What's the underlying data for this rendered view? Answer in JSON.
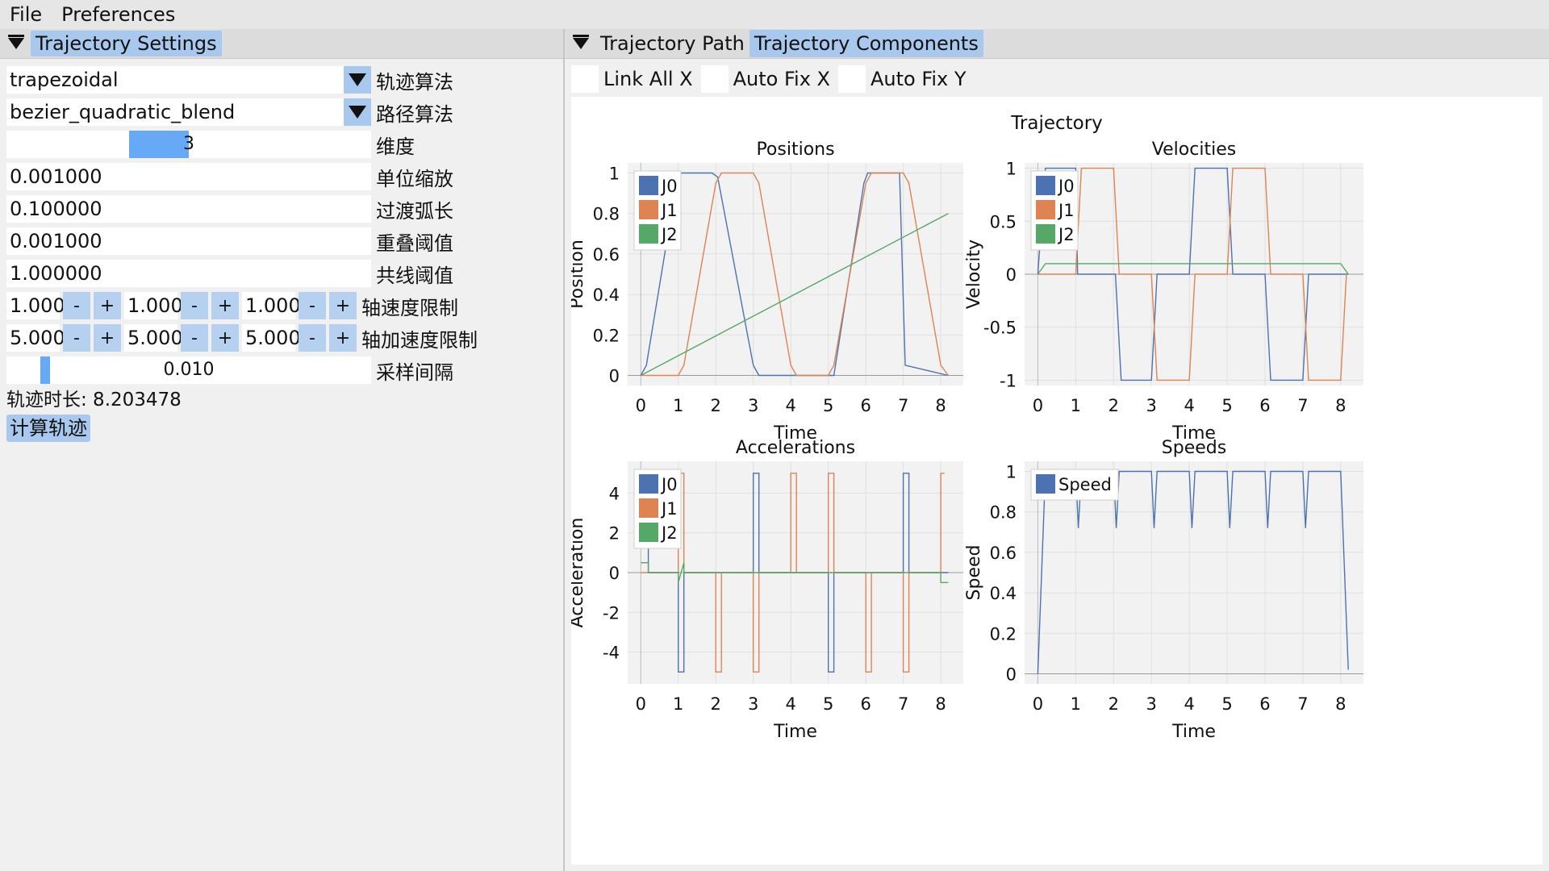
{
  "menu": {
    "file": "File",
    "preferences": "Preferences"
  },
  "left_panel": {
    "header": "Trajectory Settings",
    "trajectory_algorithm": {
      "value": "trapezoidal",
      "label": "轨迹算法"
    },
    "path_algorithm": {
      "value": "bezier_quadratic_blend",
      "label": "路径算法"
    },
    "dimension": {
      "value": "3",
      "label": "维度",
      "fill_fraction": 0.16
    },
    "unit_scale": {
      "value": "0.001000",
      "label": "单位缩放"
    },
    "blend_arc_length": {
      "value": "0.100000",
      "label": "过渡弧长"
    },
    "overlap_threshold": {
      "value": "0.001000",
      "label": "重叠阈值"
    },
    "collinear_threshold": {
      "value": "1.000000",
      "label": "共线阈值"
    },
    "axis_velocity_limit": {
      "values": [
        "1.000",
        "1.000",
        "1.000"
      ],
      "label": "轴速度限制"
    },
    "axis_acceleration_limit": {
      "values": [
        "5.000",
        "5.000",
        "5.000"
      ],
      "label": "轴加速度限制"
    },
    "sample_interval": {
      "value": "0.010",
      "label": "采样间隔",
      "fill_fraction": 0.01
    },
    "duration_text": "轨迹时长: 8.203478",
    "compute_button": "计算轨迹",
    "minus": "-",
    "plus": "+"
  },
  "right_panel": {
    "tabs": [
      "Trajectory Path",
      "Trajectory Components"
    ],
    "active_tab": "Trajectory Components",
    "checkboxes": [
      "Link All X",
      "Auto Fix X",
      "Auto Fix Y"
    ],
    "figure_title": "Trajectory"
  },
  "colors": {
    "J0": "#4c72b0",
    "J1": "#dd8452",
    "J2": "#55a868",
    "accent": "#a8c8ee"
  },
  "chart_data": [
    {
      "type": "line",
      "title": "Positions",
      "xlabel": "Time",
      "ylabel": "Position",
      "xlim": [
        -0.35,
        8.6
      ],
      "ylim": [
        -0.05,
        1.05
      ],
      "xticks": [
        0,
        1,
        2,
        3,
        4,
        5,
        6,
        7,
        8
      ],
      "yticks": [
        0,
        0.2,
        0.4,
        0.6,
        0.8,
        1
      ],
      "ytick_labels": [
        "0",
        "0.2",
        "0.4",
        "0.6",
        "0.8",
        "1"
      ],
      "legend": "top-left",
      "series": [
        {
          "name": "J0",
          "x": [
            0,
            0.15,
            0.95,
            1.05,
            1.9,
            2.05,
            3.0,
            3.15,
            4.0,
            5.15,
            5.95,
            6.05,
            6.9,
            7.05,
            8.2
          ],
          "y": [
            0,
            0.05,
            0.95,
            1,
            1,
            0.98,
            0.05,
            0,
            0,
            0,
            0.95,
            1,
            1,
            0.05,
            0
          ]
        },
        {
          "name": "J1",
          "x": [
            0,
            1.0,
            1.15,
            2.0,
            2.15,
            3.0,
            3.15,
            4.0,
            4.15,
            5.0,
            5.15,
            6.0,
            6.15,
            7.0,
            7.15,
            8.0,
            8.2
          ],
          "y": [
            0,
            0,
            0.05,
            0.95,
            1,
            1,
            0.95,
            0.05,
            0,
            0,
            0.05,
            0.95,
            1,
            1,
            0.95,
            0.05,
            0
          ]
        },
        {
          "name": "J2",
          "x": [
            0,
            8.2
          ],
          "y": [
            0,
            0.8
          ]
        }
      ]
    },
    {
      "type": "line",
      "title": "Velocities",
      "xlabel": "Time",
      "ylabel": "Velocity",
      "xlim": [
        -0.35,
        8.6
      ],
      "ylim": [
        -1.05,
        1.05
      ],
      "xticks": [
        0,
        1,
        2,
        3,
        4,
        5,
        6,
        7,
        8
      ],
      "yticks": [
        -1,
        -0.5,
        0,
        0.5,
        1
      ],
      "ytick_labels": [
        "-1",
        "-0.5",
        "0",
        "0.5",
        "1"
      ],
      "legend": "top-left",
      "series": [
        {
          "name": "J0",
          "x": [
            0,
            0.2,
            1.0,
            1.05,
            2.05,
            2.2,
            3.0,
            3.15,
            4.0,
            4.15,
            5.0,
            5.15,
            6.0,
            6.15,
            7.0,
            7.15,
            8.0,
            8.2
          ],
          "y": [
            0,
            1,
            1,
            0,
            0,
            -1,
            -1,
            0,
            0,
            1,
            1,
            0,
            0,
            -1,
            -1,
            0,
            0,
            0
          ]
        },
        {
          "name": "J1",
          "x": [
            0,
            1.0,
            1.15,
            2.0,
            2.15,
            3.0,
            3.15,
            4.0,
            4.15,
            5.0,
            5.15,
            6.0,
            6.15,
            7.0,
            7.15,
            8.0,
            8.15
          ],
          "y": [
            0,
            0,
            1,
            1,
            0,
            0,
            -1,
            -1,
            0,
            0,
            1,
            1,
            0,
            0,
            -1,
            -1,
            0
          ]
        },
        {
          "name": "J2",
          "x": [
            0,
            0.2,
            8.0,
            8.2
          ],
          "y": [
            0,
            0.1,
            0.1,
            0
          ]
        }
      ]
    },
    {
      "type": "line",
      "title": "Accelerations",
      "xlabel": "Time",
      "ylabel": "Acceleration",
      "xlim": [
        -0.35,
        8.6
      ],
      "ylim": [
        -5.6,
        5.6
      ],
      "xticks": [
        0,
        1,
        2,
        3,
        4,
        5,
        6,
        7,
        8
      ],
      "yticks": [
        -4,
        -2,
        0,
        2,
        4
      ],
      "ytick_labels": [
        "-4",
        "-2",
        "0",
        "2",
        "4"
      ],
      "legend": "top-left",
      "series": [
        {
          "name": "J0",
          "x": [
            0.15,
            0.2,
            0.2,
            1.0,
            1.0,
            1.15,
            1.15,
            3.0,
            3.0,
            3.15,
            3.15,
            5.0,
            5.0,
            5.15,
            5.15,
            7.0,
            7.0,
            7.15,
            7.15,
            8.2
          ],
          "y": [
            5,
            5,
            0,
            0,
            -5,
            -5,
            0,
            0,
            5,
            5,
            0,
            0,
            -5,
            -5,
            0,
            0,
            5,
            5,
            0,
            0
          ]
        },
        {
          "name": "J1",
          "x": [
            0,
            1.0,
            1.0,
            1.15,
            1.15,
            2.0,
            2.0,
            2.15,
            2.15,
            3.0,
            3.0,
            3.15,
            3.15,
            4.0,
            4.0,
            4.15,
            4.15,
            5.0,
            5.0,
            5.15,
            5.15,
            6.0,
            6.0,
            6.15,
            6.15,
            7.0,
            7.0,
            7.15,
            7.15,
            8.0,
            8.0,
            8.1
          ],
          "y": [
            0,
            0,
            5,
            5,
            0,
            0,
            -5,
            -5,
            0,
            0,
            -5,
            -5,
            0,
            0,
            5,
            5,
            0,
            0,
            5,
            5,
            0,
            0,
            -5,
            -5,
            0,
            0,
            -5,
            -5,
            0,
            0,
            5,
            5
          ]
        },
        {
          "name": "J2",
          "x": [
            0,
            0.2,
            0.2,
            1.0,
            1.0,
            1.15,
            1.15,
            8.0,
            8.0,
            8.2
          ],
          "y": [
            0.5,
            0.5,
            0,
            0,
            -0.5,
            0.5,
            0,
            0,
            -0.5,
            -0.5
          ]
        }
      ]
    },
    {
      "type": "line",
      "title": "Speeds",
      "xlabel": "Time",
      "ylabel": "Speed",
      "xlim": [
        -0.35,
        8.6
      ],
      "ylim": [
        -0.05,
        1.05
      ],
      "xticks": [
        0,
        1,
        2,
        3,
        4,
        5,
        6,
        7,
        8
      ],
      "yticks": [
        0,
        0.2,
        0.4,
        0.6,
        0.8,
        1
      ],
      "ytick_labels": [
        "0",
        "0.2",
        "0.4",
        "0.6",
        "0.8",
        "1"
      ],
      "legend": "top-left",
      "series": [
        {
          "name": "Speed",
          "x": [
            0,
            0.2,
            1.0,
            1.07,
            1.15,
            2.0,
            2.07,
            2.15,
            3.0,
            3.07,
            3.15,
            4.0,
            4.07,
            4.15,
            5.0,
            5.07,
            5.15,
            6.0,
            6.07,
            6.15,
            7.0,
            7.07,
            7.15,
            8.0,
            8.2
          ],
          "y": [
            0,
            1,
            1,
            0.72,
            1,
            1,
            0.72,
            1,
            1,
            0.72,
            1,
            1,
            0.72,
            1,
            1,
            0.72,
            1,
            1,
            0.72,
            1,
            1,
            0.72,
            1,
            1,
            0.02
          ]
        }
      ]
    }
  ]
}
